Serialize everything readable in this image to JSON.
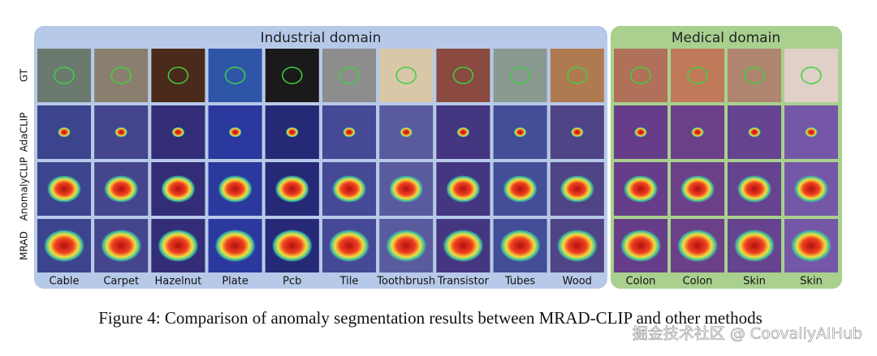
{
  "figure": {
    "industrial": {
      "title": "Industrial domain",
      "columns": [
        "Cable",
        "Carpet",
        "Hazelnut",
        "Plate",
        "Pcb",
        "Tile",
        "Toothbrush",
        "Transistor",
        "Tubes",
        "Wood"
      ]
    },
    "medical": {
      "title": "Medical domain",
      "columns": [
        "Colon",
        "Colon",
        "Skin",
        "Skin"
      ]
    },
    "rows": [
      "GT",
      "AdaCLIP",
      "AnomalyCLIP",
      "MRAD"
    ],
    "caption": "Figure 4: Comparison of anomaly segmentation results between MRAD-CLIP and other methods",
    "watermark": "掘金技术社区 @ CoovallyAIHub"
  }
}
